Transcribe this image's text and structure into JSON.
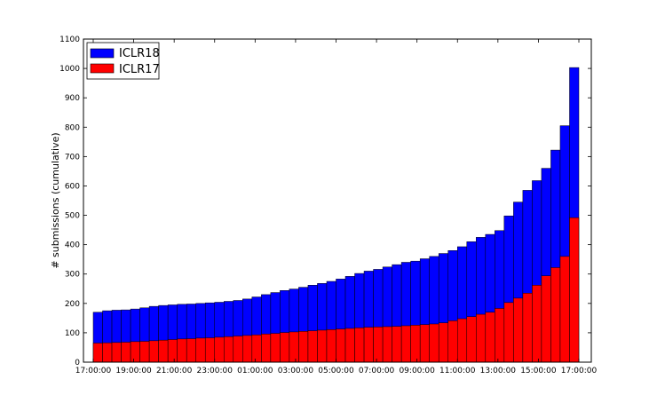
{
  "chart_data": {
    "type": "bar",
    "stacked": "overlay",
    "ylabel": "# submissions (cumulative)",
    "xlabel": "",
    "ylim": [
      0,
      1100
    ],
    "yticks": [
      0,
      100,
      200,
      300,
      400,
      500,
      600,
      700,
      800,
      900,
      1000,
      1100
    ],
    "xtick_labels": [
      "17:00:00",
      "19:00:00",
      "21:00:00",
      "23:00:00",
      "01:00:00",
      "03:00:00",
      "05:00:00",
      "07:00:00",
      "09:00:00",
      "11:00:00",
      "13:00:00",
      "15:00:00",
      "17:00:00"
    ],
    "legend_position": "top-left",
    "grid": false,
    "series": [
      {
        "name": "ICLR18",
        "color": "#0000ff",
        "values": [
          170,
          175,
          177,
          178,
          181,
          185,
          190,
          193,
          195,
          197,
          198,
          200,
          202,
          204,
          207,
          210,
          215,
          222,
          230,
          237,
          244,
          249,
          255,
          262,
          268,
          275,
          283,
          292,
          302,
          310,
          316,
          324,
          332,
          340,
          344,
          352,
          360,
          370,
          380,
          393,
          410,
          425,
          435,
          448,
          498,
          545,
          585,
          618,
          660,
          722,
          805,
          1003
        ]
      },
      {
        "name": "ICLR17",
        "color": "#ff0000",
        "values": [
          65,
          66,
          67,
          68,
          70,
          71,
          73,
          75,
          77,
          79,
          80,
          82,
          83,
          85,
          87,
          89,
          91,
          93,
          96,
          98,
          101,
          103,
          105,
          107,
          109,
          111,
          113,
          115,
          117,
          119,
          120,
          121,
          122,
          124,
          126,
          128,
          130,
          134,
          141,
          148,
          155,
          163,
          170,
          183,
          203,
          218,
          235,
          262,
          294,
          322,
          360,
          492
        ]
      }
    ]
  }
}
